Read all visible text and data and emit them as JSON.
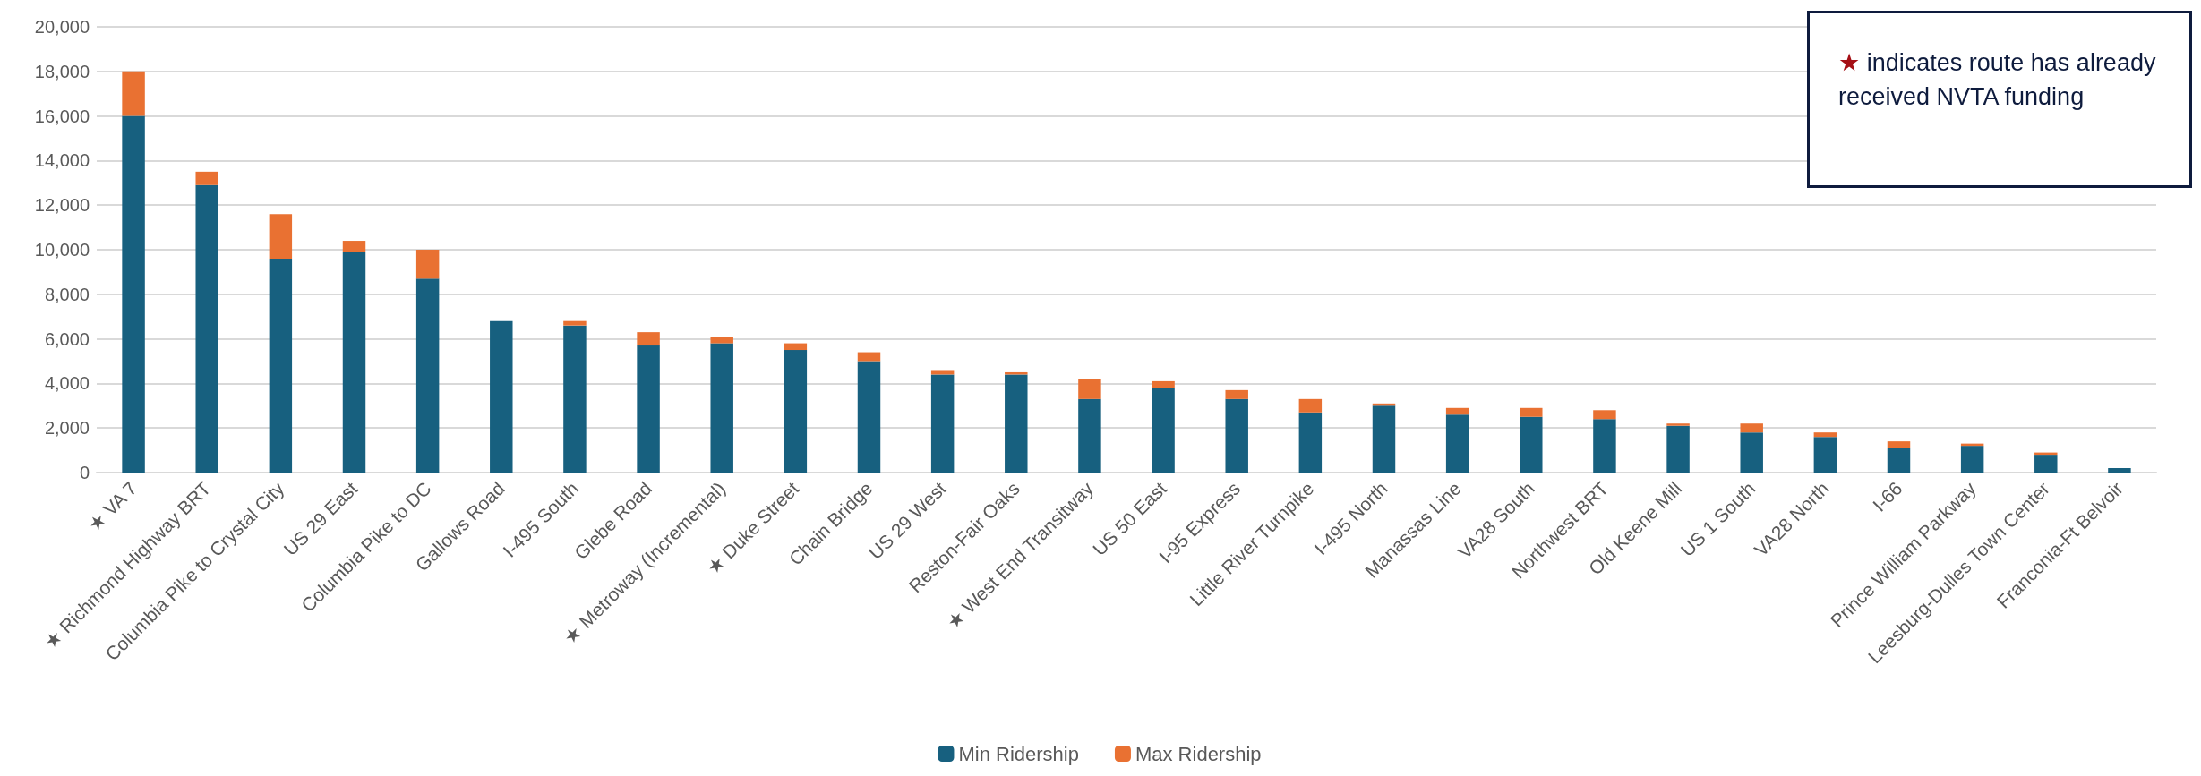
{
  "chart_data": {
    "type": "bar",
    "stacked": true,
    "categories": [
      "★ VA 7",
      "★ Richmond Highway BRT",
      "Columbia Pike to Crystal City",
      "US 29 East",
      "Columbia Pike to DC",
      "Gallows Road",
      "I-495 South",
      "Glebe Road",
      "★ Metroway (Incremental)",
      "★ Duke Street",
      "Chain Bridge",
      "US 29 West",
      "Reston-Fair Oaks",
      "★ West End Transitway",
      "US 50 East",
      "I-95 Express",
      "Little River Turnpike",
      "I-495 North",
      "Manassas Line",
      "VA28 South",
      "Northwest BRT",
      "Old Keene Mill",
      "US 1 South",
      "VA28 North",
      "I-66",
      "Prince William Parkway",
      "Leesburg-Dulles Town Center",
      "Franconia-Ft Belvoir"
    ],
    "series": [
      {
        "name": "Min Ridership",
        "color": "#17607f",
        "values": [
          16000,
          12900,
          9600,
          9900,
          8700,
          6800,
          6600,
          5700,
          5800,
          5500,
          5000,
          4400,
          4400,
          3300,
          3800,
          3300,
          2700,
          3000,
          2600,
          2500,
          2400,
          2100,
          1800,
          1600,
          1100,
          1200,
          800,
          200
        ]
      },
      {
        "name": "Max Ridership",
        "color": "#e97132",
        "values": [
          2000,
          600,
          2000,
          500,
          1300,
          0,
          200,
          600,
          300,
          300,
          400,
          200,
          100,
          900,
          300,
          400,
          600,
          100,
          300,
          400,
          400,
          100,
          400,
          200,
          300,
          100,
          100,
          0
        ]
      }
    ],
    "ylim": [
      0,
      20000
    ],
    "yticks": [
      0,
      {
        "value": 2000,
        "label": "2,000"
      },
      {
        "value": 4000,
        "label": "4,000"
      },
      {
        "value": 6000,
        "label": "6,000"
      },
      {
        "value": 8000,
        "label": "8,000"
      },
      {
        "value": 10000,
        "label": "10,000"
      },
      {
        "value": 12000,
        "label": "12,000"
      },
      {
        "value": 14000,
        "label": "14,000"
      },
      {
        "value": 16000,
        "label": "16,000"
      },
      {
        "value": 18000,
        "label": "18,000"
      },
      {
        "value": 20000,
        "label": "20,000"
      }
    ],
    "grid": "y",
    "legend": "bottom",
    "annotations": [
      "★ indicates route has already received NVTA funding"
    ]
  }
}
